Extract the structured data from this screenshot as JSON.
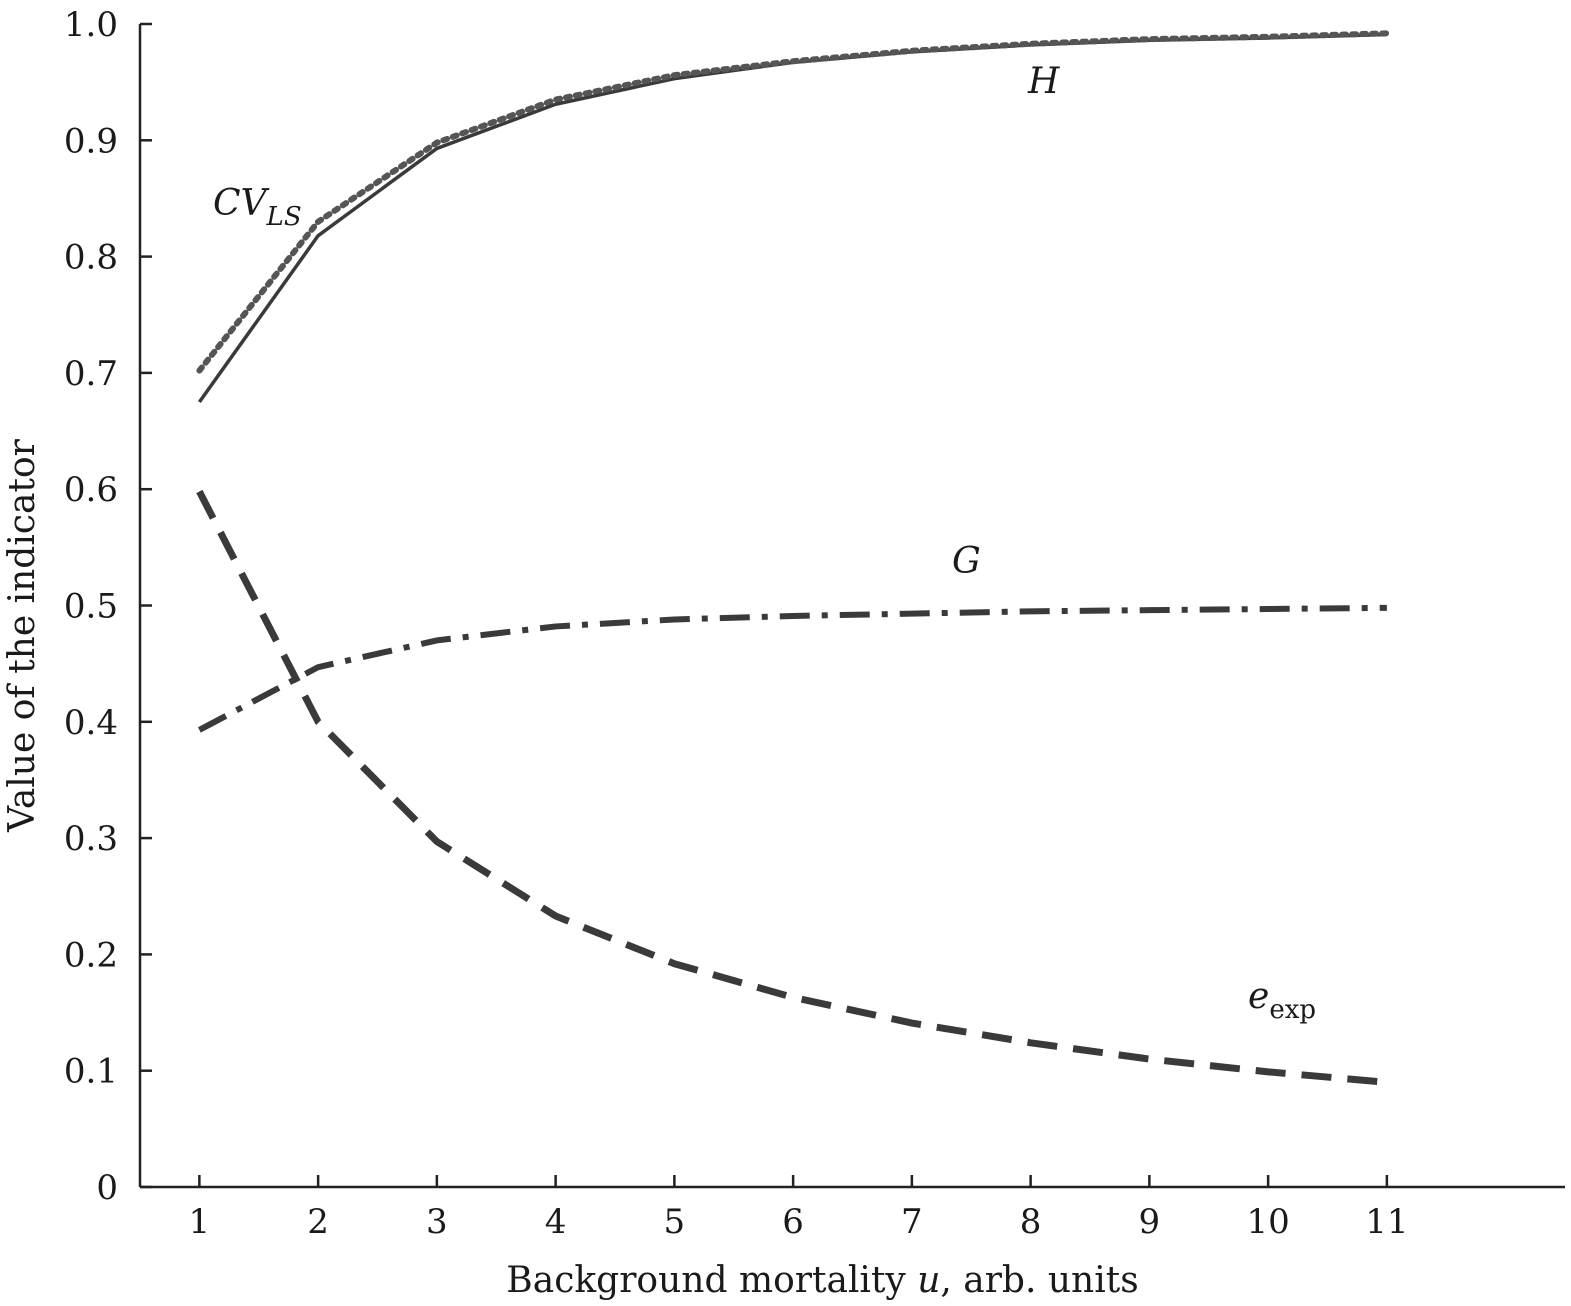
{
  "chart_data": {
    "type": "line",
    "xlabel_parts": [
      "Background mortality ",
      "u",
      ", arb. units"
    ],
    "ylabel": "Value of the indicator",
    "xlim": [
      0.5,
      12.5
    ],
    "ylim": [
      0,
      1.0
    ],
    "x_ticks": [
      1,
      2,
      3,
      4,
      5,
      6,
      7,
      8,
      9,
      10,
      11
    ],
    "y_ticks": [
      0,
      0.1,
      0.2,
      0.3,
      0.4,
      0.5,
      0.6,
      0.7,
      0.8,
      0.9,
      1.0
    ],
    "y_tick_labels": [
      "0",
      "0.1",
      "0.2",
      "0.3",
      "0.4",
      "0.5",
      "0.6",
      "0.7",
      "0.8",
      "0.9",
      "1.0"
    ],
    "grid": false,
    "legend": "none",
    "x": [
      1,
      2,
      3,
      4,
      5,
      6,
      7,
      8,
      9,
      10,
      11
    ],
    "series": [
      {
        "name": "H",
        "label_main": "H",
        "label_sub": "",
        "style": "solid",
        "color": "#3a3a3a",
        "values": [
          0.675,
          0.818,
          0.893,
          0.931,
          0.953,
          0.967,
          0.976,
          0.982,
          0.986,
          0.988,
          0.991
        ]
      },
      {
        "name": "CV_LS",
        "label_main": "CV",
        "label_sub": "LS",
        "style": "dotted",
        "color": "#555555",
        "values": [
          0.702,
          0.83,
          0.898,
          0.935,
          0.956,
          0.968,
          0.977,
          0.983,
          0.987,
          0.989,
          0.992
        ]
      },
      {
        "name": "G",
        "label_main": "G",
        "label_sub": "",
        "style": "dashdot",
        "color": "#3a3a3a",
        "values": [
          0.393,
          0.447,
          0.47,
          0.482,
          0.488,
          0.491,
          0.493,
          0.495,
          0.496,
          0.497,
          0.498
        ]
      },
      {
        "name": "e_exp",
        "label_main": "e",
        "label_sub": "exp",
        "style": "dashed",
        "color": "#3a3a3a",
        "values": [
          0.598,
          0.4,
          0.297,
          0.233,
          0.192,
          0.163,
          0.141,
          0.124,
          0.11,
          0.099,
          0.09
        ]
      }
    ]
  }
}
